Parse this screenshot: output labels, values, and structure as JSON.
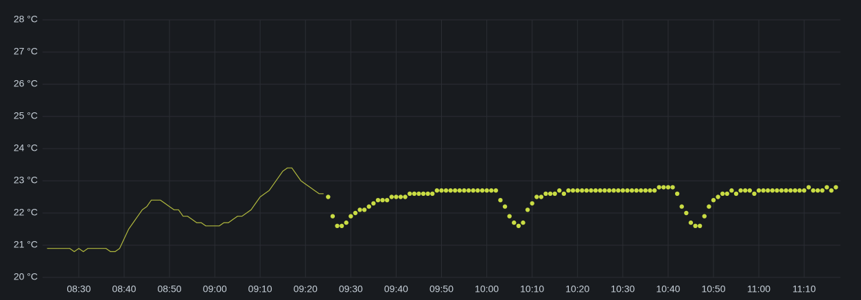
{
  "chart_data": {
    "type": "timeseries",
    "grid": true,
    "ylim": [
      20,
      28
    ],
    "yticks": [
      {
        "value": 20,
        "label": "20 °C"
      },
      {
        "value": 21,
        "label": "21 °C"
      },
      {
        "value": 22,
        "label": "22 °C"
      },
      {
        "value": 23,
        "label": "23 °C"
      },
      {
        "value": 24,
        "label": "24 °C"
      },
      {
        "value": 25,
        "label": "25 °C"
      },
      {
        "value": 26,
        "label": "26 °C"
      },
      {
        "value": 27,
        "label": "27 °C"
      },
      {
        "value": 28,
        "label": "28 °C"
      }
    ],
    "xlim": [
      "08:22",
      "11:18"
    ],
    "xticks": [
      "08:30",
      "08:40",
      "08:50",
      "09:00",
      "09:10",
      "09:20",
      "09:30",
      "09:40",
      "09:50",
      "10:00",
      "10:10",
      "10:20",
      "10:30",
      "10:40",
      "10:50",
      "11:00",
      "11:10"
    ],
    "series": [
      {
        "style": "line",
        "color": "#b3bb3e",
        "x": [
          "08:23",
          "08:24",
          "08:25",
          "08:26",
          "08:27",
          "08:28",
          "08:29",
          "08:30",
          "08:31",
          "08:32",
          "08:33",
          "08:34",
          "08:35",
          "08:36",
          "08:37",
          "08:38",
          "08:39",
          "08:40",
          "08:41",
          "08:42",
          "08:43",
          "08:44",
          "08:45",
          "08:46",
          "08:47",
          "08:48",
          "08:49",
          "08:50",
          "08:51",
          "08:52",
          "08:53",
          "08:54",
          "08:55",
          "08:56",
          "08:57",
          "08:58",
          "08:59",
          "09:00",
          "09:01",
          "09:02",
          "09:03",
          "09:04",
          "09:05",
          "09:06",
          "09:07",
          "09:08",
          "09:09",
          "09:10",
          "09:11",
          "09:12",
          "09:13",
          "09:14",
          "09:15",
          "09:16",
          "09:17",
          "09:18",
          "09:19",
          "09:20",
          "09:21",
          "09:22",
          "09:23",
          "09:24"
        ],
        "values": [
          20.9,
          20.9,
          20.9,
          20.9,
          20.9,
          20.9,
          20.8,
          20.9,
          20.8,
          20.9,
          20.9,
          20.9,
          20.9,
          20.9,
          20.8,
          20.8,
          20.9,
          21.2,
          21.5,
          21.7,
          21.9,
          22.1,
          22.2,
          22.4,
          22.4,
          22.4,
          22.3,
          22.2,
          22.1,
          22.1,
          21.9,
          21.9,
          21.8,
          21.7,
          21.7,
          21.6,
          21.6,
          21.6,
          21.6,
          21.7,
          21.7,
          21.8,
          21.9,
          21.9,
          22.0,
          22.1,
          22.3,
          22.5,
          22.6,
          22.7,
          22.9,
          23.1,
          23.3,
          23.4,
          23.4,
          23.2,
          23.0,
          22.9,
          22.8,
          22.7,
          22.6,
          22.6
        ]
      },
      {
        "style": "points",
        "color": "#c9dc44",
        "x": [
          "09:25",
          "09:26",
          "09:27",
          "09:28",
          "09:29",
          "09:30",
          "09:31",
          "09:32",
          "09:33",
          "09:34",
          "09:35",
          "09:36",
          "09:37",
          "09:38",
          "09:39",
          "09:40",
          "09:41",
          "09:42",
          "09:43",
          "09:44",
          "09:45",
          "09:46",
          "09:47",
          "09:48",
          "09:49",
          "09:50",
          "09:51",
          "09:52",
          "09:53",
          "09:54",
          "09:55",
          "09:56",
          "09:57",
          "09:58",
          "09:59",
          "10:00",
          "10:01",
          "10:02",
          "10:03",
          "10:04",
          "10:05",
          "10:06",
          "10:07",
          "10:08",
          "10:09",
          "10:10",
          "10:11",
          "10:12",
          "10:13",
          "10:14",
          "10:15",
          "10:16",
          "10:17",
          "10:18",
          "10:19",
          "10:20",
          "10:21",
          "10:22",
          "10:23",
          "10:24",
          "10:25",
          "10:26",
          "10:27",
          "10:28",
          "10:29",
          "10:30",
          "10:31",
          "10:32",
          "10:33",
          "10:34",
          "10:35",
          "10:36",
          "10:37",
          "10:38",
          "10:39",
          "10:40",
          "10:41",
          "10:42",
          "10:43",
          "10:44",
          "10:45",
          "10:46",
          "10:47",
          "10:48",
          "10:49",
          "10:50",
          "10:51",
          "10:52",
          "10:53",
          "10:54",
          "10:55",
          "10:56",
          "10:57",
          "10:58",
          "10:59",
          "11:00",
          "11:01",
          "11:02",
          "11:03",
          "11:04",
          "11:05",
          "11:06",
          "11:07",
          "11:08",
          "11:09",
          "11:10",
          "11:11",
          "11:12",
          "11:13",
          "11:14",
          "11:15",
          "11:16",
          "11:17"
        ],
        "values": [
          22.5,
          21.9,
          21.6,
          21.6,
          21.7,
          21.9,
          22.0,
          22.1,
          22.1,
          22.2,
          22.3,
          22.4,
          22.4,
          22.4,
          22.5,
          22.5,
          22.5,
          22.5,
          22.6,
          22.6,
          22.6,
          22.6,
          22.6,
          22.6,
          22.7,
          22.7,
          22.7,
          22.7,
          22.7,
          22.7,
          22.7,
          22.7,
          22.7,
          22.7,
          22.7,
          22.7,
          22.7,
          22.7,
          22.4,
          22.2,
          21.9,
          21.7,
          21.6,
          21.7,
          22.1,
          22.3,
          22.5,
          22.5,
          22.6,
          22.6,
          22.6,
          22.7,
          22.6,
          22.7,
          22.7,
          22.7,
          22.7,
          22.7,
          22.7,
          22.7,
          22.7,
          22.7,
          22.7,
          22.7,
          22.7,
          22.7,
          22.7,
          22.7,
          22.7,
          22.7,
          22.7,
          22.7,
          22.7,
          22.8,
          22.8,
          22.8,
          22.8,
          22.6,
          22.2,
          22.0,
          21.7,
          21.6,
          21.6,
          21.9,
          22.2,
          22.4,
          22.5,
          22.6,
          22.6,
          22.7,
          22.6,
          22.7,
          22.7,
          22.7,
          22.6,
          22.7,
          22.7,
          22.7,
          22.7,
          22.7,
          22.7,
          22.7,
          22.7,
          22.7,
          22.7,
          22.7,
          22.8,
          22.7,
          22.7,
          22.7,
          22.8,
          22.7,
          22.8
        ]
      }
    ]
  }
}
